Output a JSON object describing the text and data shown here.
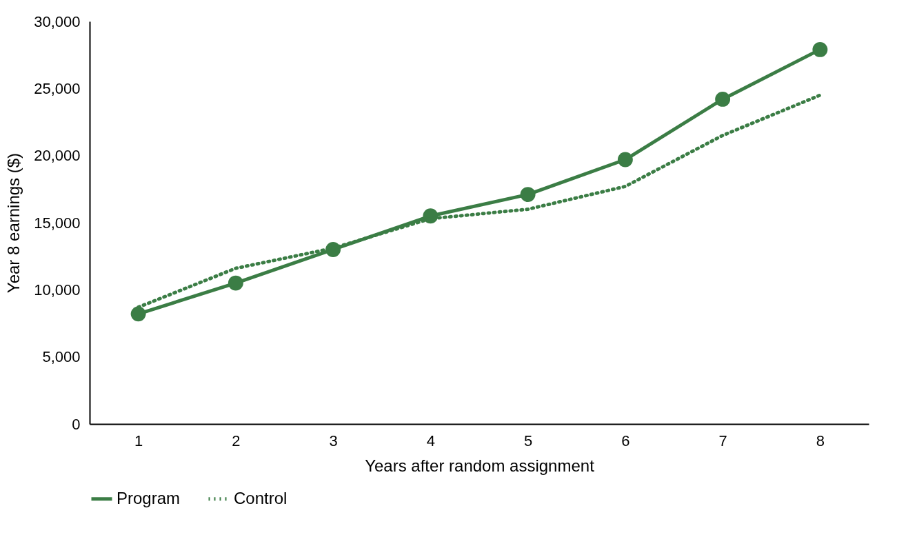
{
  "chart_data": {
    "type": "line",
    "xlabel": "Years after random assignment",
    "ylabel": "Year 8 earnings ($)",
    "categories": [
      "1",
      "2",
      "3",
      "4",
      "5",
      "6",
      "7",
      "8"
    ],
    "series": [
      {
        "name": "Program",
        "color": "#3b7d45",
        "marker": "circle",
        "line_style": "solid",
        "values": [
          8200,
          10500,
          13000,
          15500,
          17100,
          19700,
          24200,
          27900
        ]
      },
      {
        "name": "Control",
        "color": "#3b7d45",
        "marker": "none",
        "line_style": "dotted",
        "values": [
          8700,
          11600,
          13100,
          15300,
          16000,
          17700,
          21500,
          24500
        ]
      }
    ],
    "ylim": [
      0,
      30000
    ],
    "yticks": [
      0,
      {
        "value": 5000,
        "label": "5,000"
      },
      {
        "value": 10000,
        "label": "10,000"
      },
      {
        "value": 15000,
        "label": "15,000"
      },
      {
        "value": 20000,
        "label": "20,000"
      },
      {
        "value": 25000,
        "label": "25,000"
      },
      {
        "value": 30000,
        "label": "30,000"
      }
    ],
    "grid": false,
    "legend": "bottom"
  }
}
